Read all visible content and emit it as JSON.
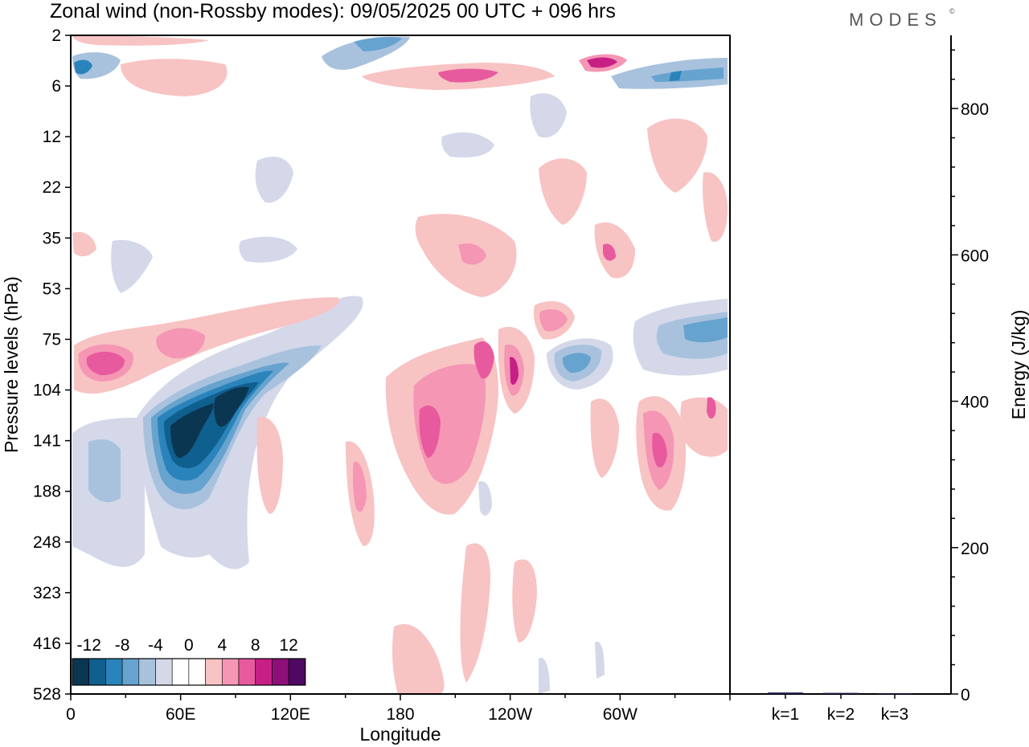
{
  "title": "Zonal wind (non-Rossby modes):  09/05/2025  00 UTC  + 096 hrs",
  "logo": "MODES",
  "logo_mark": "©",
  "chart_data": [
    {
      "type": "heatmap",
      "title": "Zonal wind (non-Rossby modes):  09/05/2025  00 UTC  + 096 hrs",
      "xlabel": "Longitude",
      "ylabel": "Pressure levels (hPa)",
      "x_ticks": [
        "0",
        "60E",
        "120E",
        "180",
        "120W",
        "60W"
      ],
      "y_ticks": [
        "2",
        "6",
        "12",
        "22",
        "35",
        "53",
        "75",
        "104",
        "141",
        "188",
        "248",
        "323",
        "416",
        "528"
      ],
      "colorbar": {
        "labels": [
          "-12",
          "-8",
          "-4",
          "0",
          "4",
          "8",
          "12"
        ],
        "colors": [
          "#0b3651",
          "#0f5f8f",
          "#2a84bb",
          "#67a3cf",
          "#a8c2de",
          "#d4d8e9",
          "#ffffff",
          "#ffffff",
          "#f8c3c3",
          "#f496b4",
          "#e85a9e",
          "#c62085",
          "#8e0f78",
          "#4e0a63"
        ]
      },
      "features": [
        {
          "name": "strong-easterly-core",
          "lon": 55,
          "plev": 141,
          "value": -12
        },
        {
          "name": "strong-easterly-core-2",
          "lon": 85,
          "plev": 120,
          "value": -12
        },
        {
          "name": "westerly-max-lower-strat",
          "lon": 20,
          "plev": 90,
          "value": 8
        },
        {
          "name": "westerly-max-dateline",
          "lon": 195,
          "plev": 141,
          "value": 8
        },
        {
          "name": "westerly-max-240E",
          "lon": 240,
          "plev": 95,
          "value": 8
        },
        {
          "name": "westerly-max-300E",
          "lon": 318,
          "plev": 150,
          "value": 8
        },
        {
          "name": "upper-westerly-200E",
          "lon": 203,
          "plev": 5,
          "value": 6
        },
        {
          "name": "upper-easterly-330E",
          "lon": 335,
          "plev": 5,
          "value": -6
        }
      ]
    },
    {
      "type": "bar",
      "categories": [
        "k=1",
        "k=2",
        "k=3"
      ],
      "values": [
        2,
        1.5,
        1
      ],
      "ylabel": "Energy (J/kg)",
      "y_ticks": [
        "0",
        "200",
        "400",
        "600",
        "800"
      ],
      "ylim": [
        0,
        900
      ]
    }
  ]
}
